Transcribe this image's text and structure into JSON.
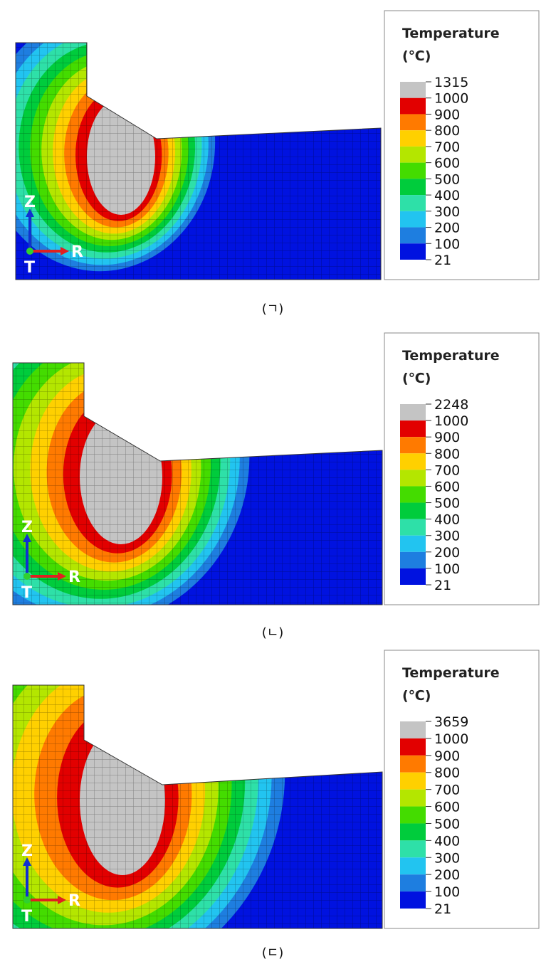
{
  "panels": [
    {
      "legend": {
        "title": "Temperature",
        "unit": "(℃)",
        "levels": [
          1315,
          1000,
          900,
          800,
          700,
          600,
          500,
          400,
          300,
          200,
          100,
          21
        ]
      },
      "axes": {
        "z": "Z",
        "r": "R",
        "t": "T"
      },
      "caption": "(ㄱ)"
    },
    {
      "legend": {
        "title": "Temperature",
        "unit": "(℃)",
        "levels": [
          2248,
          1000,
          900,
          800,
          700,
          600,
          500,
          400,
          300,
          200,
          100,
          21
        ]
      },
      "axes": {
        "z": "Z",
        "r": "R",
        "t": "T"
      },
      "caption": "(ㄴ)"
    },
    {
      "legend": {
        "title": "Temperature",
        "unit": "(℃)",
        "levels": [
          3659,
          1000,
          900,
          800,
          700,
          600,
          500,
          400,
          300,
          200,
          100,
          21
        ]
      },
      "axes": {
        "z": "Z",
        "r": "R",
        "t": "T"
      },
      "caption": "(ㄷ)"
    }
  ],
  "colors": [
    "#c4c4c4",
    "#e20000",
    "#ff7a00",
    "#ffd000",
    "#b4e600",
    "#44dc00",
    "#00cc3c",
    "#2ee0a8",
    "#22c4f0",
    "#1e7ee0",
    "#0012e0"
  ]
}
